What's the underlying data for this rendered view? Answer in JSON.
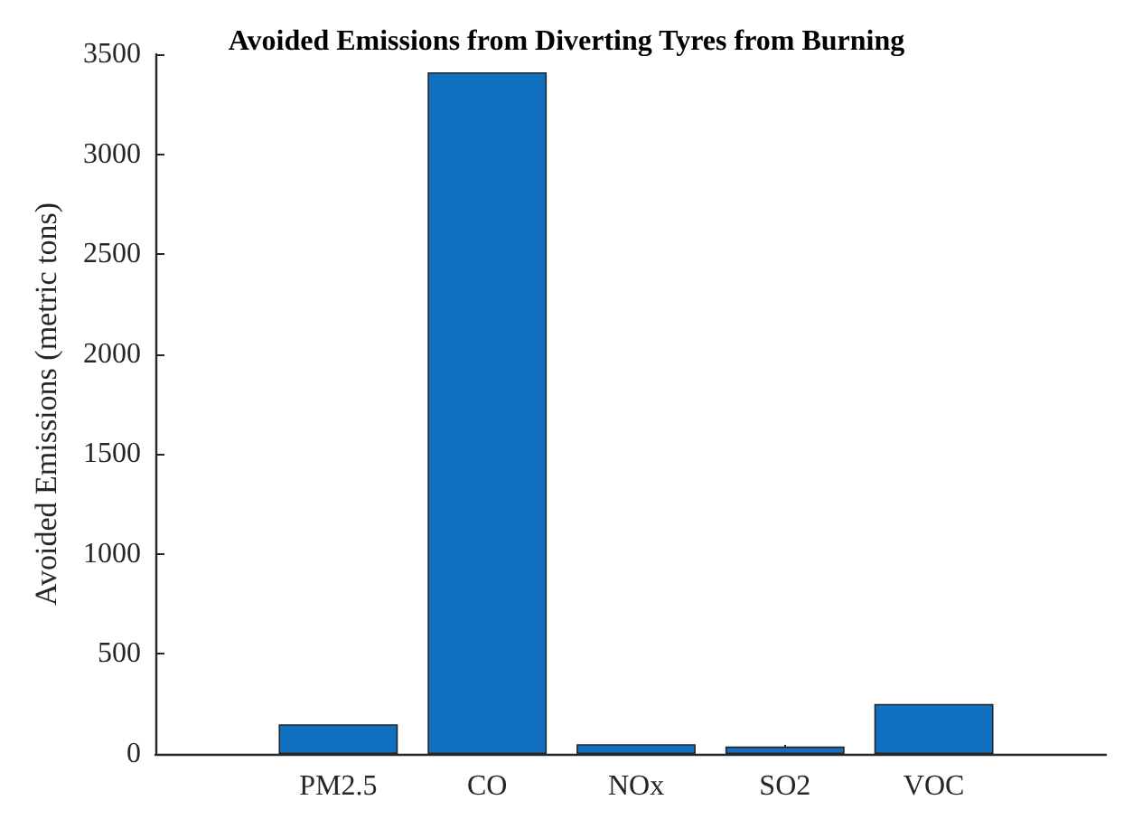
{
  "chart_data": {
    "type": "bar",
    "title": "Avoided Emissions from Diverting Tyres from Burning",
    "ylabel": "Avoided Emissions (metric tons)",
    "categories": [
      "PM2.5",
      "CO",
      "NOx",
      "SO2",
      "VOC"
    ],
    "values": [
      148,
      3410,
      49,
      37,
      250
    ],
    "color": "#1170c0",
    "ylim": [
      0,
      3500
    ],
    "yticks": [
      0,
      500,
      1000,
      1500,
      2000,
      2500,
      3000,
      3500
    ],
    "grid": false
  }
}
